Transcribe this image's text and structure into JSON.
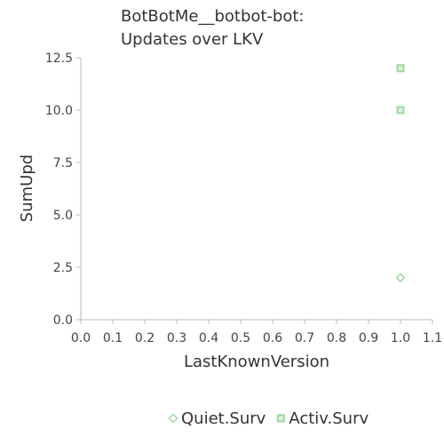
{
  "chart_data": {
    "type": "scatter",
    "title_lines": [
      "BotBotMe__botbot-bot:",
      "Updates over LKV"
    ],
    "xlabel": "LastKnownVersion",
    "ylabel": "SumUpd",
    "xlim": [
      0.0,
      1.1
    ],
    "ylim": [
      0.0,
      12.5
    ],
    "x_ticks": [
      "0.0",
      "0.1",
      "0.2",
      "0.3",
      "0.4",
      "0.5",
      "0.6",
      "0.7",
      "0.8",
      "0.9",
      "1.0",
      "1.1"
    ],
    "y_ticks": [
      "0.0",
      "2.5",
      "5.0",
      "7.5",
      "10.0",
      "12.5"
    ],
    "grid": false,
    "legend_position": "bottom",
    "series": [
      {
        "name": "Quiet.Surv",
        "marker": "diamond",
        "color": "#9ed99e",
        "points": [
          {
            "x": 1.0,
            "y": 2
          }
        ]
      },
      {
        "name": "Activ.Surv",
        "marker": "square",
        "color": "#9ed99e",
        "points": [
          {
            "x": 1.0,
            "y": 10
          },
          {
            "x": 1.0,
            "y": 12
          }
        ]
      }
    ]
  }
}
